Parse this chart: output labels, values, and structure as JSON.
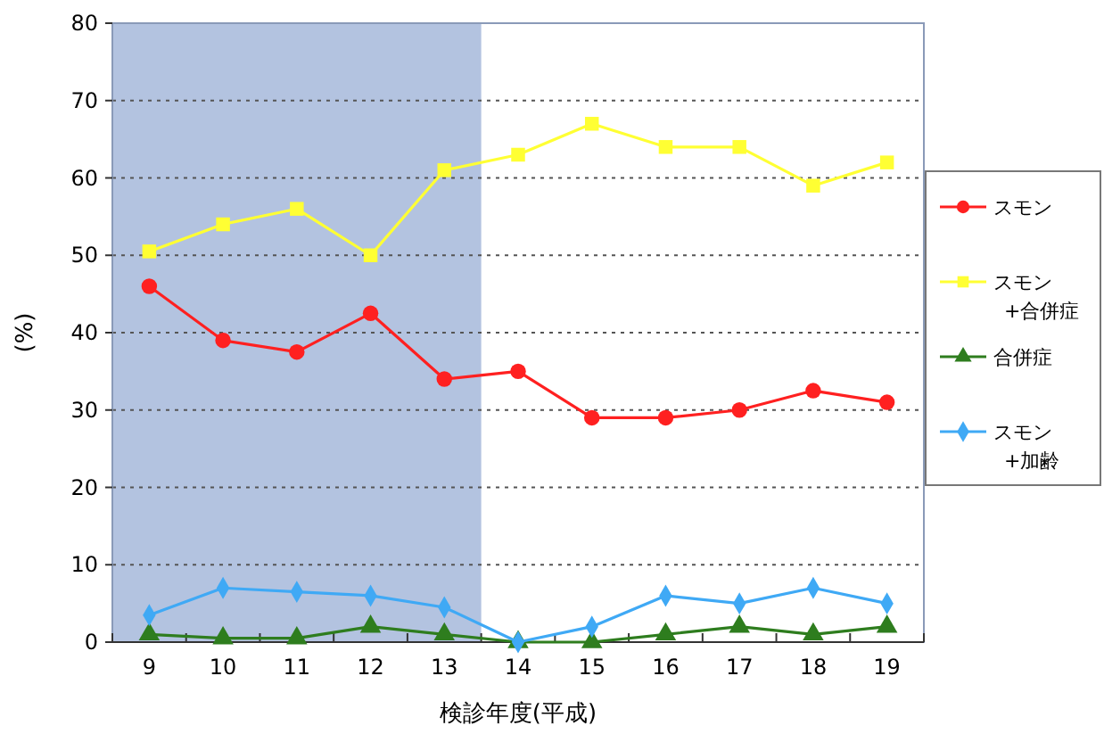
{
  "chart_data": {
    "type": "line",
    "xlabel": "検診年度(平成)",
    "ylabel": "(%)",
    "categories": [
      "9",
      "10",
      "11",
      "12",
      "13",
      "14",
      "15",
      "16",
      "17",
      "18",
      "19"
    ],
    "ylim": [
      0,
      80
    ],
    "yticks": [
      0,
      10,
      20,
      30,
      40,
      50,
      60,
      70,
      80
    ],
    "grid": "y",
    "legend": "right",
    "bands": [
      {
        "axis": "x",
        "from": "9",
        "to": "13",
        "color": "#b3c3e0"
      }
    ],
    "series": [
      {
        "name": "スモン",
        "color": "#ff2020",
        "marker": "circle",
        "values": [
          46,
          39,
          37.5,
          42.5,
          34,
          35,
          29,
          29,
          30,
          32.5,
          31
        ]
      },
      {
        "name": "スモン\n+合併症",
        "color": "#ffff33",
        "marker": "square",
        "values": [
          50.5,
          54,
          56,
          50,
          61,
          63,
          67,
          64,
          64,
          59,
          62
        ]
      },
      {
        "name": "合併症",
        "color": "#2e7d1e",
        "marker": "triangle",
        "values": [
          1,
          0.5,
          0.5,
          2,
          1,
          0,
          0,
          1,
          2,
          1,
          2
        ]
      },
      {
        "name": "スモン\n+加齢",
        "color": "#3fa9f5",
        "marker": "diamond",
        "values": [
          3.5,
          7,
          6.5,
          6,
          4.5,
          0,
          2,
          6,
          5,
          7,
          5
        ]
      }
    ]
  }
}
